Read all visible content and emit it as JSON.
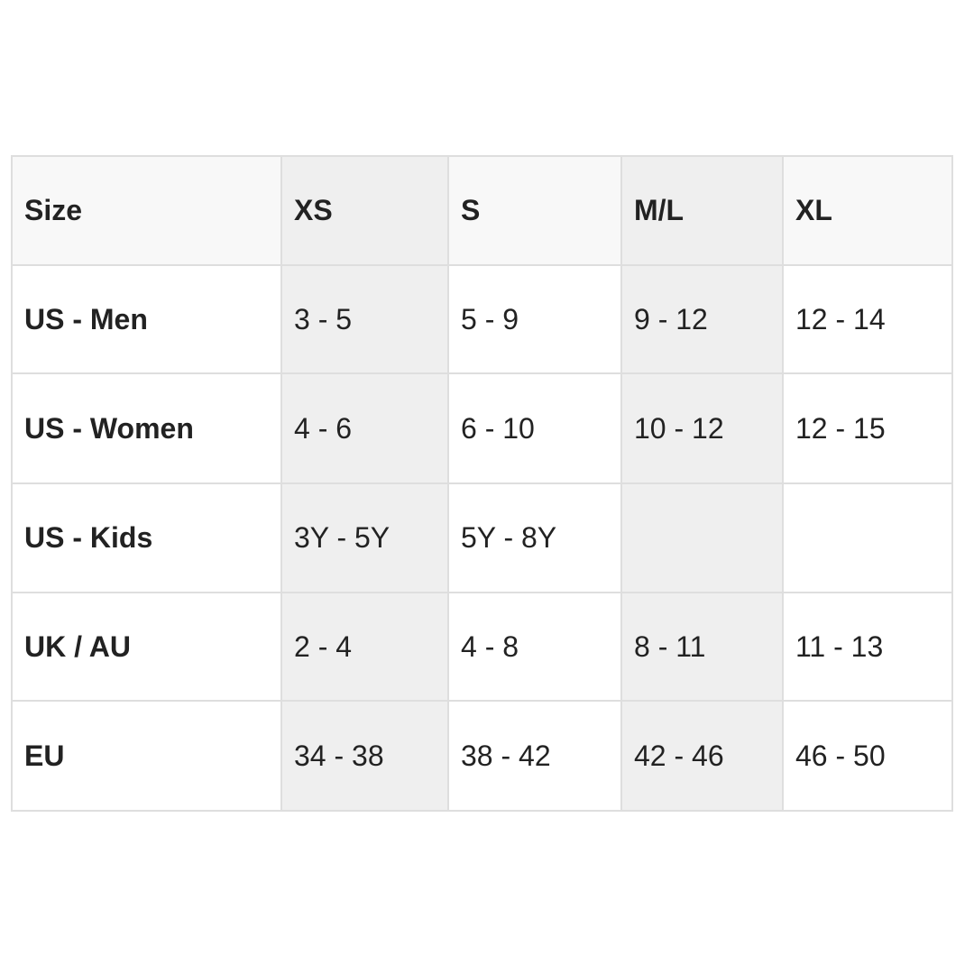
{
  "table": {
    "headers": [
      "Size",
      "XS",
      "S",
      "M/L",
      "XL"
    ],
    "rows": [
      {
        "label": "US - Men",
        "values": [
          "3 - 5",
          "5 - 9",
          "9 - 12",
          "12 - 14"
        ]
      },
      {
        "label": "US - Women",
        "values": [
          "4 - 6",
          "6 - 10",
          "10 - 12",
          "12 - 15"
        ]
      },
      {
        "label": "US - Kids",
        "values": [
          "3Y - 5Y",
          "5Y - 8Y",
          "",
          ""
        ]
      },
      {
        "label": "UK / AU",
        "values": [
          "2 - 4",
          "4 - 8",
          "8 - 11",
          "11 - 13"
        ]
      },
      {
        "label": "EU",
        "values": [
          "34 - 38",
          "38 - 42",
          "42 - 46",
          "46 - 50"
        ]
      }
    ]
  },
  "colors": {
    "header_bg": "#f8f8f8",
    "shaded_column_bg": "#efefef",
    "border": "#dedede",
    "text": "#222222"
  }
}
